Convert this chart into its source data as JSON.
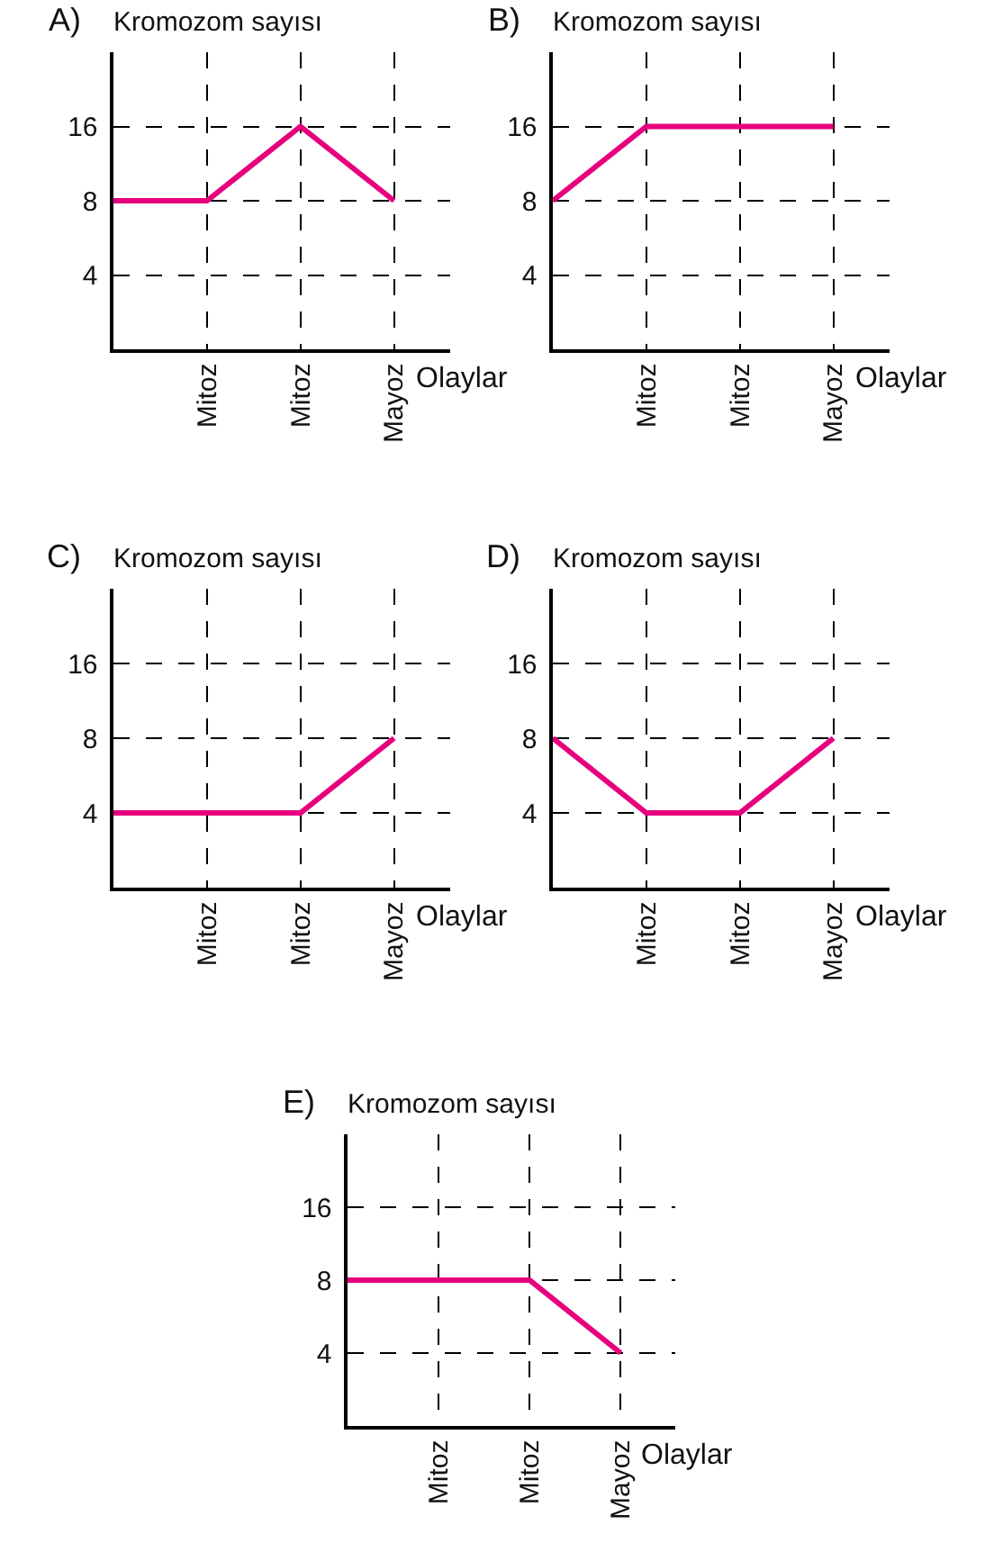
{
  "chart_data": [
    {
      "type": "line",
      "title": "A)",
      "ylabel": "Kromozom sayısı",
      "xlabel": "Olaylar",
      "categories": [
        null,
        "Mitoz",
        "Mitoz",
        "Mayoz"
      ],
      "series": [
        {
          "color": "#e6007e",
          "values": [
            8,
            8,
            16,
            8
          ]
        }
      ],
      "log": "y",
      "ylim": [
        2,
        32
      ],
      "yticks": [
        4,
        8,
        16
      ],
      "grid": true,
      "marker": "none",
      "line_style": "solid"
    },
    {
      "type": "line",
      "title": "B)",
      "ylabel": "Kromozom sayısı",
      "xlabel": "Olaylar",
      "categories": [
        null,
        "Mitoz",
        "Mitoz",
        "Mayoz"
      ],
      "series": [
        {
          "color": "#e6007e",
          "values": [
            8,
            16,
            16,
            16
          ]
        }
      ],
      "log": "y",
      "ylim": [
        2,
        32
      ],
      "yticks": [
        4,
        8,
        16
      ],
      "grid": true,
      "marker": "none",
      "line_style": "solid"
    },
    {
      "type": "line",
      "title": "C)",
      "ylabel": "Kromozom sayısı",
      "xlabel": "Olaylar",
      "categories": [
        null,
        "Mitoz",
        "Mitoz",
        "Mayoz"
      ],
      "series": [
        {
          "color": "#e6007e",
          "values": [
            4,
            4,
            4,
            8
          ]
        }
      ],
      "log": "y",
      "ylim": [
        2,
        32
      ],
      "yticks": [
        4,
        8,
        16
      ],
      "grid": true,
      "marker": "none",
      "line_style": "solid"
    },
    {
      "type": "line",
      "title": "D)",
      "ylabel": "Kromozom sayısı",
      "xlabel": "Olaylar",
      "categories": [
        null,
        "Mitoz",
        "Mitoz",
        "Mayoz"
      ],
      "series": [
        {
          "color": "#e6007e",
          "values": [
            8,
            4,
            4,
            8
          ]
        }
      ],
      "log": "y",
      "ylim": [
        2,
        32
      ],
      "yticks": [
        4,
        8,
        16
      ],
      "grid": true,
      "marker": "none",
      "line_style": "solid"
    },
    {
      "type": "line",
      "title": "E)",
      "ylabel": "Kromozom sayısı",
      "xlabel": "Olaylar",
      "categories": [
        null,
        "Mitoz",
        "Mitoz",
        "Mayoz"
      ],
      "series": [
        {
          "color": "#e6007e",
          "values": [
            8,
            8,
            8,
            4
          ]
        }
      ],
      "log": "y",
      "ylim": [
        2,
        32
      ],
      "yticks": [
        4,
        8,
        16
      ],
      "grid": true,
      "marker": "none",
      "line_style": "solid"
    }
  ]
}
